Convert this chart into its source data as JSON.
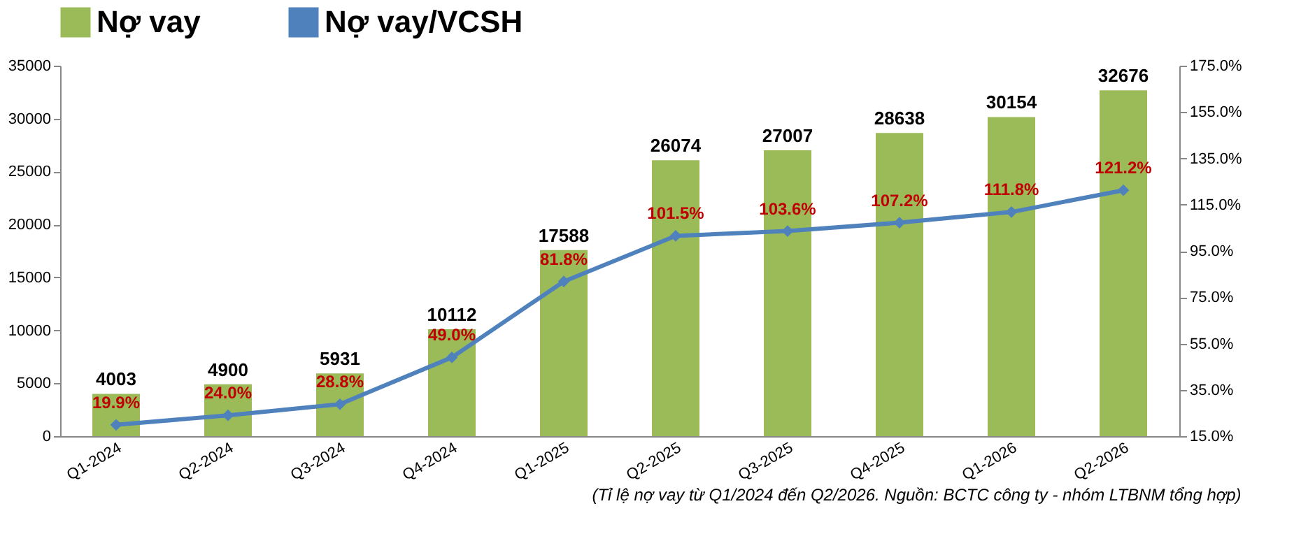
{
  "chart_data": {
    "type": "bar",
    "categories": [
      "Q1-2024",
      "Q2-2024",
      "Q3-2024",
      "Q4-2024",
      "Q1-2025",
      "Q2-2025",
      "Q3-2025",
      "Q4-2025",
      "Q1-2026",
      "Q2-2026"
    ],
    "series": [
      {
        "name": "Nợ vay",
        "color": "#9bbb59",
        "values": [
          4003,
          4900,
          5931,
          10112,
          17588,
          26074,
          27007,
          28638,
          30154,
          32676
        ]
      },
      {
        "name": "Nợ vay/VCSH",
        "type": "line",
        "axis": "y2",
        "color": "#4f81bd",
        "values": [
          19.9,
          24.0,
          28.8,
          49.0,
          81.8,
          101.5,
          103.6,
          107.2,
          111.8,
          121.2
        ],
        "value_labels": [
          "19.9%",
          "24.0%",
          "28.8%",
          "49.0%",
          "81.8%",
          "101.5%",
          "103.6%",
          "107.2%",
          "111.8%",
          "121.2%"
        ]
      }
    ],
    "data_labels": true,
    "marker": "diamond",
    "line_style": "solid",
    "legend": "top",
    "grid": false,
    "ylim": [
      0,
      35000
    ],
    "yticks": [
      0,
      5000,
      10000,
      15000,
      20000,
      25000,
      30000,
      35000
    ],
    "y2lim": [
      15,
      175
    ],
    "y2ticks": [
      {
        "value": 15,
        "label": "15.0%"
      },
      {
        "value": 35,
        "label": "35.0%"
      },
      {
        "value": 55,
        "label": "55.0%"
      },
      {
        "value": 75,
        "label": "75.0%"
      },
      {
        "value": 95,
        "label": "95.0%"
      },
      {
        "value": 115,
        "label": "115.0%"
      },
      {
        "value": 135,
        "label": "135.0%"
      },
      {
        "value": 155,
        "label": "155.0%"
      },
      {
        "value": 175,
        "label": "175.0%"
      }
    ],
    "annotations": [
      "(Tỉ lệ nợ vay từ Q1/2024 đến Q2/2026. Nguồn: BCTC công ty - nhóm LTBNM tổng hợp)"
    ]
  }
}
